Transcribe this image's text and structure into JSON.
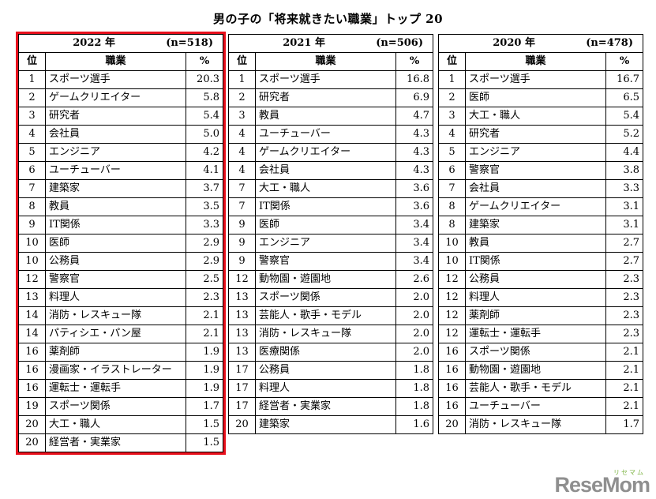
{
  "page": {
    "title": "男の子の「将来就きたい職業」トップ 20"
  },
  "highlight_color": "#e8101c",
  "watermark": {
    "kana": "リセマム",
    "text": "ReseMom"
  },
  "chart_data": [
    {
      "type": "table",
      "id": "2022",
      "year_label": "2022 年",
      "n_label": "(n=518)",
      "highlighted": true,
      "columns": [
        "位",
        "職業",
        "%"
      ],
      "rows": [
        [
          "1",
          "スポーツ選手",
          "20.3"
        ],
        [
          "2",
          "ゲームクリエイター",
          "5.8"
        ],
        [
          "3",
          "研究者",
          "5.4"
        ],
        [
          "4",
          "会社員",
          "5.0"
        ],
        [
          "5",
          "エンジニア",
          "4.2"
        ],
        [
          "6",
          "ユーチューバー",
          "4.1"
        ],
        [
          "7",
          "建築家",
          "3.7"
        ],
        [
          "8",
          "教員",
          "3.5"
        ],
        [
          "9",
          "IT関係",
          "3.3"
        ],
        [
          "10",
          "医師",
          "2.9"
        ],
        [
          "10",
          "公務員",
          "2.9"
        ],
        [
          "12",
          "警察官",
          "2.5"
        ],
        [
          "13",
          "料理人",
          "2.3"
        ],
        [
          "14",
          "消防・レスキュー隊",
          "2.1"
        ],
        [
          "14",
          "パティシエ・パン屋",
          "2.1"
        ],
        [
          "16",
          "薬剤師",
          "1.9"
        ],
        [
          "16",
          "漫画家・イラストレーター",
          "1.9"
        ],
        [
          "16",
          "運転士・運転手",
          "1.9"
        ],
        [
          "19",
          "スポーツ関係",
          "1.7"
        ],
        [
          "20",
          "大工・職人",
          "1.5"
        ],
        [
          "20",
          "経営者・実業家",
          "1.5"
        ]
      ]
    },
    {
      "type": "table",
      "id": "2021",
      "year_label": "2021 年",
      "n_label": "(n=506)",
      "highlighted": false,
      "columns": [
        "位",
        "職業",
        "%"
      ],
      "rows": [
        [
          "1",
          "スポーツ選手",
          "16.8"
        ],
        [
          "2",
          "研究者",
          "6.9"
        ],
        [
          "3",
          "教員",
          "4.7"
        ],
        [
          "4",
          "ユーチューバー",
          "4.3"
        ],
        [
          "4",
          "ゲームクリエイター",
          "4.3"
        ],
        [
          "4",
          "会社員",
          "4.3"
        ],
        [
          "7",
          "大工・職人",
          "3.6"
        ],
        [
          "7",
          "IT関係",
          "3.6"
        ],
        [
          "9",
          "医師",
          "3.4"
        ],
        [
          "9",
          "エンジニア",
          "3.4"
        ],
        [
          "9",
          "警察官",
          "3.4"
        ],
        [
          "12",
          "動物園・遊園地",
          "2.6"
        ],
        [
          "13",
          "スポーツ関係",
          "2.0"
        ],
        [
          "13",
          "芸能人・歌手・モデル",
          "2.0"
        ],
        [
          "13",
          "消防・レスキュー隊",
          "2.0"
        ],
        [
          "13",
          "医療関係",
          "2.0"
        ],
        [
          "17",
          "公務員",
          "1.8"
        ],
        [
          "17",
          "料理人",
          "1.8"
        ],
        [
          "17",
          "経営者・実業家",
          "1.8"
        ],
        [
          "20",
          "建築家",
          "1.6"
        ]
      ]
    },
    {
      "type": "table",
      "id": "2020",
      "year_label": "2020 年",
      "n_label": "(n=478)",
      "highlighted": false,
      "columns": [
        "位",
        "職業",
        "%"
      ],
      "rows": [
        [
          "1",
          "スポーツ選手",
          "16.7"
        ],
        [
          "2",
          "医師",
          "6.5"
        ],
        [
          "3",
          "大工・職人",
          "5.4"
        ],
        [
          "4",
          "研究者",
          "5.2"
        ],
        [
          "5",
          "エンジニア",
          "4.4"
        ],
        [
          "6",
          "警察官",
          "3.8"
        ],
        [
          "7",
          "会社員",
          "3.3"
        ],
        [
          "8",
          "ゲームクリエイター",
          "3.1"
        ],
        [
          "8",
          "建築家",
          "3.1"
        ],
        [
          "10",
          "教員",
          "2.7"
        ],
        [
          "10",
          "IT関係",
          "2.7"
        ],
        [
          "12",
          "公務員",
          "2.3"
        ],
        [
          "12",
          "料理人",
          "2.3"
        ],
        [
          "12",
          "薬剤師",
          "2.3"
        ],
        [
          "12",
          "運転士・運転手",
          "2.3"
        ],
        [
          "16",
          "スポーツ関係",
          "2.1"
        ],
        [
          "16",
          "動物園・遊園地",
          "2.1"
        ],
        [
          "16",
          "芸能人・歌手・モデル",
          "2.1"
        ],
        [
          "16",
          "ユーチューバー",
          "2.1"
        ],
        [
          "20",
          "消防・レスキュー隊",
          "1.7"
        ]
      ]
    }
  ]
}
